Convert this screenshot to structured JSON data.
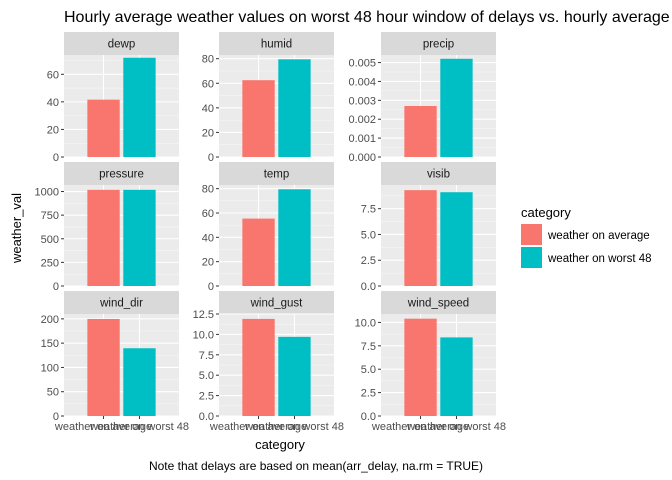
{
  "chart_data": {
    "type": "bar",
    "title": "Hourly average weather values on worst 48 hour window of delays vs. hourly average",
    "xlabel": "category",
    "ylabel": "weather_val",
    "caption": "Note that delays are based on mean(arr_delay, na.rm = TRUE)",
    "categories": [
      "weather on average",
      "weather on worst 48"
    ],
    "colors": [
      "#F8766D",
      "#00BFC4"
    ],
    "legend": {
      "title": "category",
      "position": "right",
      "entries": [
        "weather on average",
        "weather on worst 48"
      ]
    },
    "grid": true,
    "facets": [
      {
        "name": "dewp",
        "values": [
          41.6,
          72.0
        ],
        "ylim": [
          0,
          74
        ],
        "ticks": [
          0,
          20,
          40,
          60
        ],
        "tick_labels": [
          "0",
          "20",
          "40",
          "60"
        ]
      },
      {
        "name": "humid",
        "values": [
          62.5,
          79.5
        ],
        "ylim": [
          0,
          83
        ],
        "ticks": [
          0,
          20,
          40,
          60,
          80
        ],
        "tick_labels": [
          "0",
          "20",
          "40",
          "60",
          "80"
        ]
      },
      {
        "name": "precip",
        "values": [
          0.0027,
          0.0052
        ],
        "ylim": [
          0,
          0.0054
        ],
        "ticks": [
          0,
          0.001,
          0.002,
          0.003,
          0.004,
          0.005
        ],
        "tick_labels": [
          "0.000",
          "0.001",
          "0.002",
          "0.003",
          "0.004",
          "0.005"
        ]
      },
      {
        "name": "pressure",
        "values": [
          1017.6,
          1017.8
        ],
        "ylim": [
          0,
          1069
        ],
        "ticks": [
          0,
          250,
          500,
          750,
          1000
        ],
        "tick_labels": [
          "0",
          "250",
          "500",
          "750",
          "1000"
        ]
      },
      {
        "name": "temp",
        "values": [
          55.4,
          79.5
        ],
        "ylim": [
          0,
          83
        ],
        "ticks": [
          0,
          20,
          40,
          60,
          80
        ],
        "tick_labels": [
          "0",
          "20",
          "40",
          "60",
          "80"
        ]
      },
      {
        "name": "visib",
        "values": [
          9.3,
          9.1
        ],
        "ylim": [
          0,
          9.8
        ],
        "ticks": [
          0,
          2.5,
          5,
          7.5
        ],
        "tick_labels": [
          "0.0",
          "2.5",
          "5.0",
          "7.5"
        ]
      },
      {
        "name": "wind_dir",
        "values": [
          199.8,
          139.5
        ],
        "ylim": [
          0,
          210
        ],
        "ticks": [
          0,
          50,
          100,
          150,
          200
        ],
        "tick_labels": [
          "0",
          "50",
          "100",
          "150",
          "200"
        ]
      },
      {
        "name": "wind_gust",
        "values": [
          11.9,
          9.7
        ],
        "ylim": [
          0,
          12.5
        ],
        "ticks": [
          0,
          2.5,
          5,
          7.5,
          10,
          12.5
        ],
        "tick_labels": [
          "0.0",
          "2.5",
          "5.0",
          "7.5",
          "10.0",
          "12.5"
        ]
      },
      {
        "name": "wind_speed",
        "values": [
          10.4,
          8.4
        ],
        "ylim": [
          0,
          10.9
        ],
        "ticks": [
          0,
          2.5,
          5,
          7.5,
          10
        ],
        "tick_labels": [
          "0.0",
          "2.5",
          "5.0",
          "7.5",
          "10.0"
        ]
      }
    ]
  }
}
